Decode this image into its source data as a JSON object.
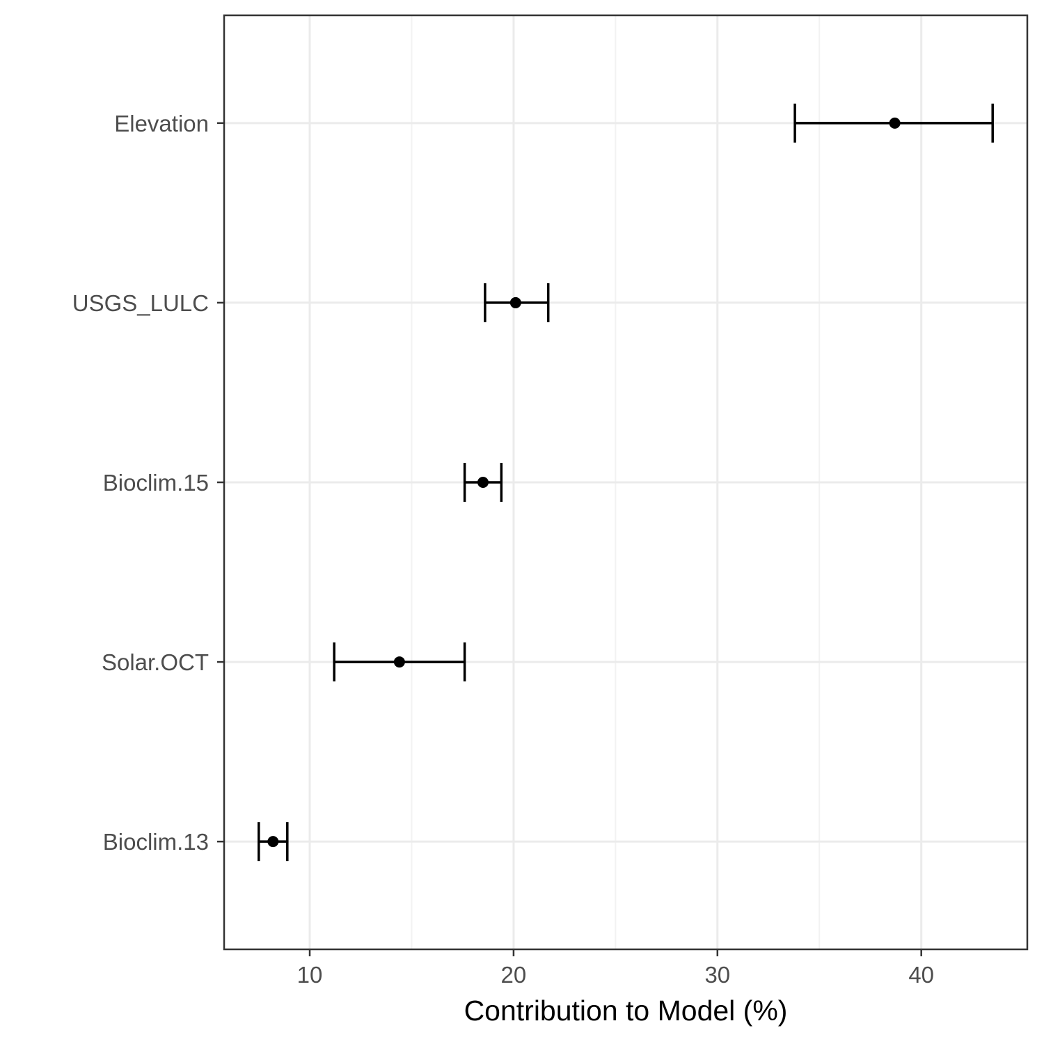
{
  "chart_data": {
    "type": "errorbar",
    "orientation": "horizontal",
    "title": "",
    "xlabel": "Contribution to Model (%)",
    "ylabel": "",
    "xlim": [
      5.8,
      45.2
    ],
    "x_ticks": [
      10,
      20,
      30,
      40
    ],
    "x_tick_labels": [
      "10",
      "20",
      "30",
      "40"
    ],
    "x_minor_ticks": [
      15,
      25,
      35
    ],
    "categories": [
      "Elevation",
      "USGS_LULC",
      "Bioclim.15",
      "Solar.OCT",
      "Bioclim.13"
    ],
    "values": [
      38.7,
      20.1,
      18.5,
      14.4,
      8.2
    ],
    "lower": [
      33.8,
      18.6,
      17.6,
      11.2,
      7.5
    ],
    "upper": [
      43.5,
      21.7,
      19.4,
      17.6,
      8.9
    ],
    "grid": true,
    "legend": "none",
    "colors": {
      "point": "#000000",
      "errorbar": "#000000",
      "grid_major": "#ebebeb",
      "grid_minor": "#f2f2f2",
      "panel_border": "#333333",
      "tick_text": "#4d4d4d",
      "axis_title": "#000000"
    }
  }
}
